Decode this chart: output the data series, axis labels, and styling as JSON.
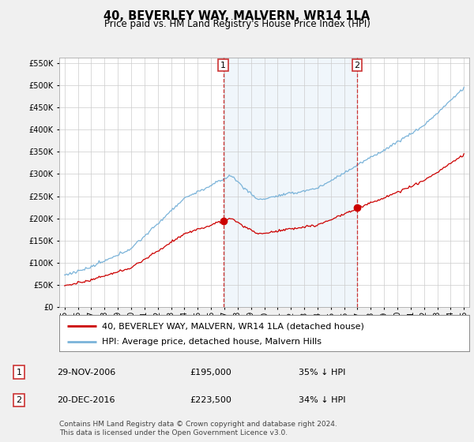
{
  "title": "40, BEVERLEY WAY, MALVERN, WR14 1LA",
  "subtitle": "Price paid vs. HM Land Registry's House Price Index (HPI)",
  "hpi_label": "HPI: Average price, detached house, Malvern Hills",
  "property_label": "40, BEVERLEY WAY, MALVERN, WR14 1LA (detached house)",
  "footer": "Contains HM Land Registry data © Crown copyright and database right 2024.\nThis data is licensed under the Open Government Licence v3.0.",
  "sale1_date": "29-NOV-2006",
  "sale1_price": "£195,000",
  "sale1_hpi": "35% ↓ HPI",
  "sale2_date": "20-DEC-2016",
  "sale2_price": "£223,500",
  "sale2_hpi": "34% ↓ HPI",
  "vline1_x": 2006.92,
  "vline2_x": 2016.97,
  "sale1_y": 195000,
  "sale2_y": 223500,
  "ylim": [
    0,
    562500
  ],
  "xlim_start": 1994.6,
  "xlim_end": 2025.4,
  "hpi_color": "#7ab3d9",
  "hpi_fill_color": "#d6e8f5",
  "property_color": "#cc0000",
  "vline_color": "#cc3333",
  "bg_color": "#f0f0f0",
  "plot_bg": "#ffffff",
  "grid_color": "#cccccc",
  "title_fontsize": 10.5,
  "subtitle_fontsize": 8.5,
  "tick_fontsize": 7,
  "legend_fontsize": 8,
  "table_fontsize": 8
}
